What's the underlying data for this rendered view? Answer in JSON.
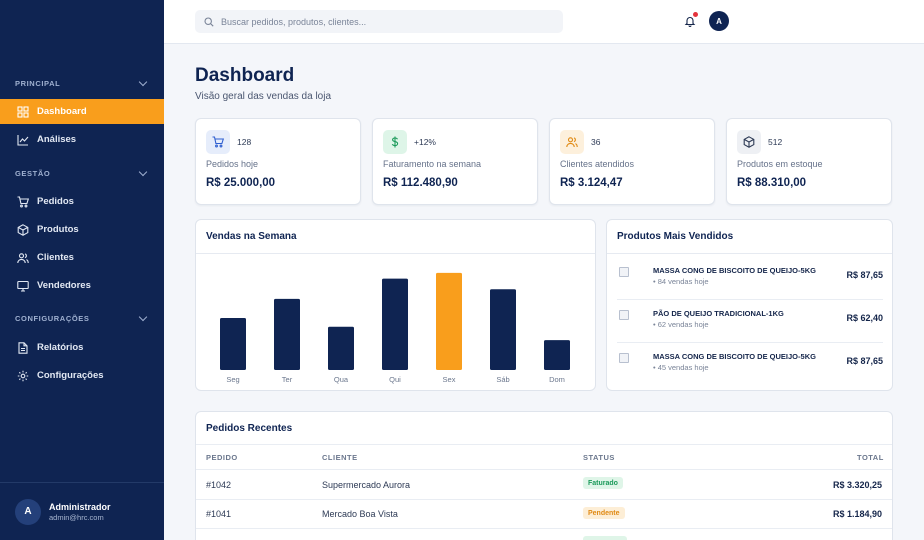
{
  "sidebar": {
    "sections": [
      {
        "title": "PRINCIPAL",
        "items": [
          {
            "label": "Dashboard",
            "icon": "grid-icon",
            "active": true
          },
          {
            "label": "Análises",
            "icon": "chart-line-icon"
          }
        ]
      },
      {
        "title": "GESTÃO",
        "items": [
          {
            "label": "Pedidos",
            "icon": "cart-icon"
          },
          {
            "label": "Produtos",
            "icon": "box-icon"
          },
          {
            "label": "Clientes",
            "icon": "users-icon"
          },
          {
            "label": "Vendedores",
            "icon": "monitor-icon"
          }
        ]
      },
      {
        "title": "CONFIGURAÇÕES",
        "items": [
          {
            "label": "Relatórios",
            "icon": "file-icon"
          },
          {
            "label": "Configurações",
            "icon": "gear-icon"
          }
        ]
      }
    ],
    "user": {
      "initial": "A",
      "name": "Administrador",
      "email": "admin@hrc.com"
    }
  },
  "topbar": {
    "search_placeholder": "Buscar pedidos, produtos, clientes...",
    "avatar_initial": "A"
  },
  "main": {
    "title": "Dashboard",
    "subtitle": "Visão geral das vendas da loja",
    "stats": [
      {
        "badge": "128",
        "label": "Pedidos hoje",
        "value": "R$ 25.000,00",
        "icon": "cart-icon",
        "color": "#2f5fd0",
        "bg": "#e6edfb"
      },
      {
        "badge": "+12%",
        "label": "Faturamento na semana",
        "value": "R$ 112.480,90",
        "icon": "dollar-icon",
        "color": "#1b9a5a",
        "bg": "#def5e8"
      },
      {
        "badge": "36",
        "label": "Clientes atendidos",
        "value": "R$ 3.124,47",
        "icon": "users-icon",
        "color": "#e08a14",
        "bg": "#fdf0dc"
      },
      {
        "badge": "512",
        "label": "Produtos em estoque",
        "value": "R$ 88.310,00",
        "icon": "box-icon",
        "color": "#2d3a55",
        "bg": "#eef0f4"
      }
    ],
    "sales_panel": {
      "title": "Vendas na Semana"
    },
    "top_products": {
      "title": "Produtos Mais Vendidos",
      "items": [
        {
          "name": "MASSA CONG DE BISCOITO DE QUEIJO-5KG",
          "sales": "• 84 vendas hoje",
          "price": "R$ 87,65"
        },
        {
          "name": "PÃO DE QUEIJO TRADICIONAL-1KG",
          "sales": "• 62 vendas hoje",
          "price": "R$ 62,40"
        },
        {
          "name": "MASSA CONG DE BISCOITO DE QUEIJO-5KG",
          "sales": "• 45 vendas hoje",
          "price": "R$ 87,65"
        }
      ]
    },
    "orders": {
      "title": "Pedidos Recentes",
      "columns": [
        "PEDIDO",
        "CLIENTE",
        "STATUS",
        "TOTAL"
      ],
      "rows": [
        {
          "id": "#1042",
          "client": "Supermercado Aurora",
          "status": "Faturado",
          "status_color": "#1b9a5a",
          "status_bg": "#dff5e8",
          "total": "R$ 3.320,25"
        },
        {
          "id": "#1041",
          "client": "Mercado Boa Vista",
          "status": "Pendente",
          "status_color": "#e08a14",
          "status_bg": "#fdeed6",
          "total": "R$ 1.184,90"
        }
      ]
    }
  },
  "chart_data": {
    "type": "bar",
    "title": "Vendas na Semana",
    "categories": [
      "Seg",
      "Ter",
      "Qua",
      "Qui",
      "Sex",
      "Sáb",
      "Dom"
    ],
    "values": [
      54,
      74,
      45,
      95,
      101,
      84,
      31
    ],
    "ylim": [
      0,
      105
    ],
    "highlight_index": 4,
    "colors": {
      "bar": "#0f2452",
      "highlight": "#f99e1c"
    },
    "grid": false
  }
}
